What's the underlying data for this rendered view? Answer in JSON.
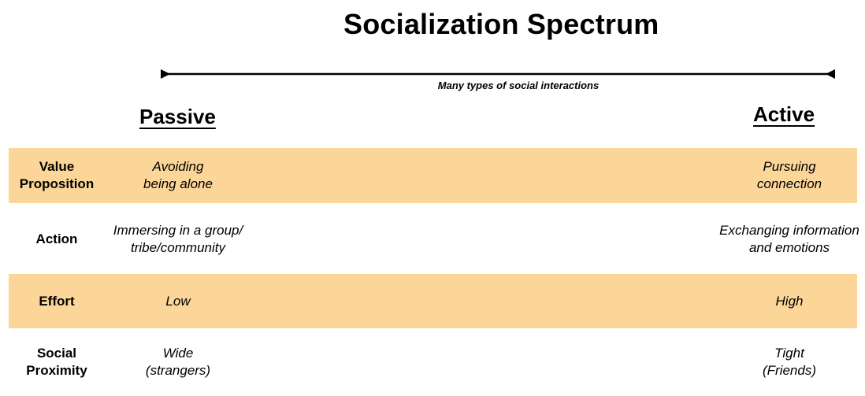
{
  "title": "Socialization Spectrum",
  "spectrum": {
    "caption": "Many types of social interactions",
    "left_pole": "Passive",
    "right_pole": "Active"
  },
  "colors": {
    "band": "#fcd699",
    "text": "#000000"
  },
  "rows": [
    {
      "label": [
        "Value",
        "Proposition"
      ],
      "passive": [
        "Avoiding",
        "being alone"
      ],
      "active": [
        "Pursuing",
        "connection"
      ],
      "highlighted": true
    },
    {
      "label": [
        "Action"
      ],
      "passive": [
        "Immersing in a group/",
        "tribe/community"
      ],
      "active": [
        "Exchanging information",
        "and emotions"
      ],
      "highlighted": false
    },
    {
      "label": [
        "Effort"
      ],
      "passive": [
        "Low"
      ],
      "active": [
        "High"
      ],
      "highlighted": true
    },
    {
      "label": [
        "Social",
        "Proximity"
      ],
      "passive": [
        "Wide",
        "(strangers)"
      ],
      "active": [
        "Tight",
        "(Friends)"
      ],
      "highlighted": false
    }
  ]
}
